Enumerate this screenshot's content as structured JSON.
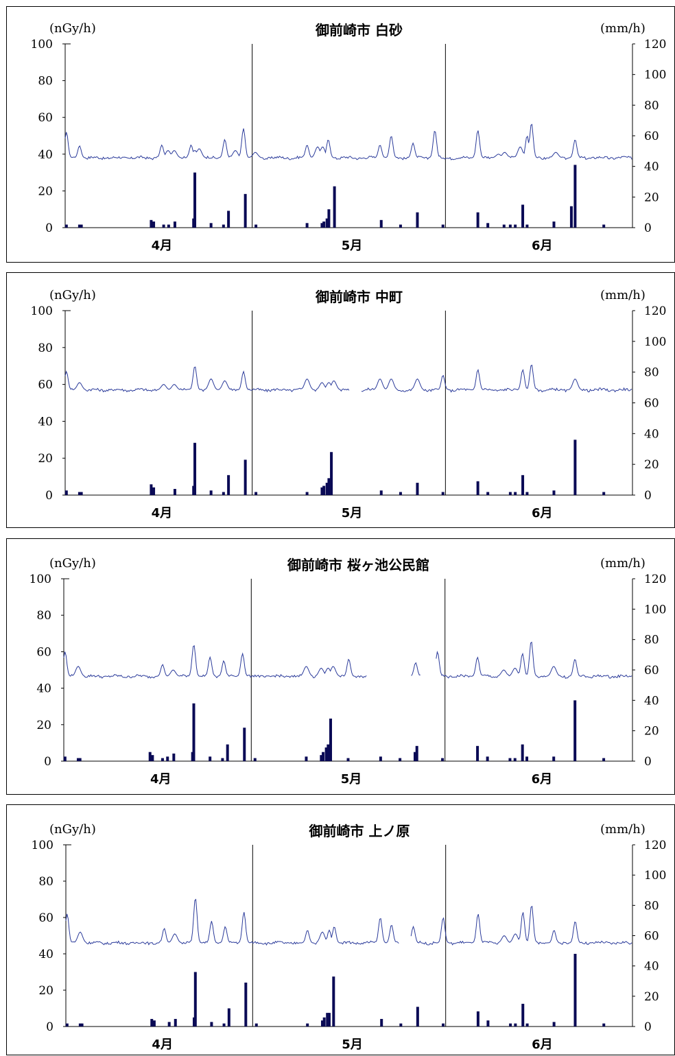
{
  "colors": {
    "dose_line": "#2a3a9a",
    "rain_bar": "#0a0a55",
    "axis": "#000000"
  },
  "chart_data": [
    {
      "type": "line",
      "title": "御前崎市 白砂",
      "left_unit": "(nGy/h)",
      "right_unit": "(mm/h)",
      "ylim_left": [
        0,
        100
      ],
      "ylim_right": [
        0,
        120
      ],
      "yticks_left": [
        "0",
        "20",
        "40",
        "60",
        "80",
        "100"
      ],
      "yticks_right": [
        "0",
        "20",
        "40",
        "60",
        "80",
        "100",
        "120"
      ],
      "xlabels": [
        "4月",
        "5月",
        "6月"
      ],
      "xlabel_days": [
        15.5,
        46,
        76.5
      ],
      "month_dividers": [
        30,
        61
      ],
      "days_total": 91,
      "series": [
        {
          "kind": "dose",
          "axis": "left",
          "base": 38,
          "gaps": [],
          "points": [
            [
              0.2,
              52
            ],
            [
              2.3,
              44.5
            ],
            [
              20.2,
              45
            ],
            [
              21.5,
              43
            ],
            [
              20.8,
              42
            ],
            [
              15.5,
              45
            ],
            [
              17.5,
              42
            ],
            [
              16.5,
              42
            ],
            [
              25.6,
              48
            ],
            [
              27.3,
              42
            ],
            [
              28.6,
              54
            ],
            [
              30.5,
              41
            ],
            [
              38.8,
              45
            ],
            [
              40.5,
              44
            ],
            [
              41.3,
              44
            ],
            [
              42.2,
              48
            ],
            [
              50.5,
              45
            ],
            [
              52.3,
              50
            ],
            [
              55.8,
              46
            ],
            [
              59.3,
              53
            ],
            [
              66.2,
              53
            ],
            [
              69.5,
              40
            ],
            [
              70.5,
              41
            ],
            [
              73,
              44
            ],
            [
              74.1,
              50
            ],
            [
              74.8,
              57
            ],
            [
              78.7,
              41
            ],
            [
              81.8,
              48
            ]
          ]
        },
        {
          "kind": "rain",
          "axis": "right",
          "bars": [
            [
              0.2,
              2
            ],
            [
              2.3,
              2
            ],
            [
              2.6,
              2
            ],
            [
              13.8,
              5
            ],
            [
              14.2,
              4
            ],
            [
              15.8,
              2
            ],
            [
              16.6,
              2
            ],
            [
              17.6,
              4
            ],
            [
              20.8,
              36
            ],
            [
              20.6,
              6
            ],
            [
              23.4,
              3
            ],
            [
              25.4,
              2
            ],
            [
              26.2,
              11
            ],
            [
              28.9,
              22
            ],
            [
              30.6,
              2
            ],
            [
              38.8,
              3
            ],
            [
              41.2,
              3
            ],
            [
              41.5,
              4
            ],
            [
              42,
              6
            ],
            [
              42.3,
              12
            ],
            [
              43.2,
              27
            ],
            [
              50.7,
              5
            ],
            [
              53.8,
              2
            ],
            [
              56.5,
              10
            ],
            [
              60.6,
              2
            ],
            [
              66.2,
              10
            ],
            [
              67.8,
              3
            ],
            [
              70.4,
              2
            ],
            [
              71.4,
              2
            ],
            [
              72.2,
              2
            ],
            [
              73.4,
              15
            ],
            [
              74.1,
              2
            ],
            [
              78.4,
              4
            ],
            [
              81.2,
              14
            ],
            [
              81.8,
              41
            ],
            [
              86.4,
              2
            ]
          ]
        }
      ]
    },
    {
      "type": "line",
      "title": "御前崎市 中町",
      "left_unit": "(nGy/h)",
      "right_unit": "(mm/h)",
      "ylim_left": [
        0,
        100
      ],
      "ylim_right": [
        0,
        120
      ],
      "yticks_left": [
        "0",
        "20",
        "40",
        "60",
        "80",
        "100"
      ],
      "yticks_right": [
        "0",
        "20",
        "40",
        "60",
        "80",
        "100",
        "120"
      ],
      "xlabels": [
        "4月",
        "5月",
        "6月"
      ],
      "xlabel_days": [
        15.5,
        46,
        76.5
      ],
      "month_dividers": [
        30,
        61
      ],
      "days_total": 91,
      "series": [
        {
          "kind": "dose",
          "axis": "left",
          "base": 57,
          "gaps": [
            [
              45.7,
              47.5
            ]
          ],
          "points": [
            [
              0.2,
              67
            ],
            [
              2.3,
              61
            ],
            [
              15.8,
              60
            ],
            [
              17.5,
              60
            ],
            [
              20.8,
              70
            ],
            [
              23.4,
              63
            ],
            [
              25.6,
              62
            ],
            [
              28.6,
              67
            ],
            [
              38.8,
              63
            ],
            [
              41.2,
              61
            ],
            [
              42.3,
              61
            ],
            [
              43.1,
              62
            ],
            [
              50.5,
              63
            ],
            [
              52.3,
              63
            ],
            [
              56.5,
              63
            ],
            [
              60.6,
              65
            ],
            [
              66.2,
              68
            ],
            [
              73.4,
              68
            ],
            [
              74.8,
              71
            ],
            [
              81.8,
              63
            ]
          ]
        },
        {
          "kind": "rain",
          "axis": "right",
          "bars": [
            [
              0.2,
              3
            ],
            [
              2.3,
              2
            ],
            [
              2.6,
              2
            ],
            [
              13.8,
              7
            ],
            [
              14.2,
              5
            ],
            [
              17.6,
              4
            ],
            [
              20.8,
              34
            ],
            [
              20.6,
              6
            ],
            [
              23.4,
              3
            ],
            [
              25.4,
              2
            ],
            [
              26.2,
              13
            ],
            [
              28.9,
              23
            ],
            [
              30.6,
              2
            ],
            [
              38.8,
              2
            ],
            [
              41.2,
              5
            ],
            [
              41.5,
              6
            ],
            [
              42,
              8
            ],
            [
              42.3,
              11
            ],
            [
              42.7,
              28
            ],
            [
              50.7,
              3
            ],
            [
              53.8,
              2
            ],
            [
              56.5,
              8
            ],
            [
              60.6,
              2
            ],
            [
              66.2,
              9
            ],
            [
              67.8,
              2
            ],
            [
              71.4,
              2
            ],
            [
              72.2,
              2
            ],
            [
              73.4,
              13
            ],
            [
              74.1,
              2
            ],
            [
              78.4,
              3
            ],
            [
              81.8,
              36
            ],
            [
              86.4,
              2
            ]
          ]
        }
      ]
    },
    {
      "type": "line",
      "title": "御前崎市 桜ヶ池公民館",
      "left_unit": "(nGy/h)",
      "right_unit": "(mm/h)",
      "ylim_left": [
        0,
        100
      ],
      "ylim_right": [
        0,
        120
      ],
      "yticks_left": [
        "0",
        "20",
        "40",
        "60",
        "80",
        "100"
      ],
      "yticks_right": [
        "0",
        "20",
        "40",
        "60",
        "80",
        "100",
        "120"
      ],
      "xlabels": [
        "4月",
        "5月",
        "6月"
      ],
      "xlabel_days": [
        15.5,
        46,
        76.5
      ],
      "month_dividers": [
        30,
        61
      ],
      "days_total": 91,
      "series": [
        {
          "kind": "dose",
          "axis": "left",
          "base": 46.5,
          "gaps": [
            [
              48.5,
              55.5
            ],
            [
              57.2,
              59.5
            ]
          ],
          "points": [
            [
              0.2,
              60
            ],
            [
              2.3,
              52
            ],
            [
              15.8,
              53
            ],
            [
              17.5,
              50
            ],
            [
              20.8,
              64
            ],
            [
              23.4,
              57
            ],
            [
              25.6,
              55
            ],
            [
              28.6,
              59
            ],
            [
              38.8,
              52
            ],
            [
              41.2,
              51
            ],
            [
              42.3,
              51
            ],
            [
              43.1,
              52
            ],
            [
              45.6,
              56
            ],
            [
              56.3,
              54
            ],
            [
              59.8,
              60
            ],
            [
              66.2,
              57
            ],
            [
              70.4,
              50
            ],
            [
              72.2,
              51
            ],
            [
              73.4,
              59
            ],
            [
              74.8,
              66
            ],
            [
              78.4,
              52
            ],
            [
              81.8,
              56
            ]
          ]
        },
        {
          "kind": "rain",
          "axis": "right",
          "bars": [
            [
              0.2,
              3
            ],
            [
              2.3,
              2
            ],
            [
              2.6,
              2
            ],
            [
              13.8,
              6
            ],
            [
              14.2,
              4
            ],
            [
              15.8,
              2
            ],
            [
              16.6,
              3
            ],
            [
              17.6,
              5
            ],
            [
              20.8,
              38
            ],
            [
              20.6,
              6
            ],
            [
              23.4,
              3
            ],
            [
              25.4,
              2
            ],
            [
              26.2,
              11
            ],
            [
              28.9,
              22
            ],
            [
              30.6,
              2
            ],
            [
              38.8,
              3
            ],
            [
              41.2,
              4
            ],
            [
              41.5,
              6
            ],
            [
              42,
              9
            ],
            [
              42.3,
              11
            ],
            [
              42.7,
              28
            ],
            [
              45.5,
              2
            ],
            [
              50.7,
              3
            ],
            [
              53.8,
              2
            ],
            [
              56.2,
              6
            ],
            [
              56.5,
              10
            ],
            [
              60.6,
              2
            ],
            [
              66.2,
              10
            ],
            [
              67.8,
              3
            ],
            [
              71.4,
              2
            ],
            [
              72.2,
              2
            ],
            [
              73.4,
              11
            ],
            [
              74.1,
              3
            ],
            [
              78.4,
              3
            ],
            [
              81.8,
              40
            ],
            [
              86.4,
              2
            ]
          ]
        }
      ]
    },
    {
      "type": "line",
      "title": "御前崎市 上ノ原",
      "left_unit": "(nGy/h)",
      "right_unit": "(mm/h)",
      "ylim_left": [
        0,
        100
      ],
      "ylim_right": [
        0,
        120
      ],
      "yticks_left": [
        "0",
        "20",
        "40",
        "60",
        "80",
        "100"
      ],
      "yticks_right": [
        "0",
        "20",
        "40",
        "60",
        "80",
        "100",
        "120"
      ],
      "xlabels": [
        "4月",
        "5月",
        "6月"
      ],
      "xlabel_days": [
        15.5,
        46,
        76.5
      ],
      "month_dividers": [
        30,
        61
      ],
      "days_total": 91,
      "series": [
        {
          "kind": "dose",
          "axis": "left",
          "base": 46,
          "gaps": [
            [
              53.5,
              55.4
            ]
          ],
          "points": [
            [
              0.2,
              62
            ],
            [
              2.3,
              52
            ],
            [
              15.8,
              54
            ],
            [
              17.5,
              51
            ],
            [
              20.8,
              71
            ],
            [
              23.4,
              58
            ],
            [
              25.6,
              55
            ],
            [
              28.6,
              63
            ],
            [
              38.8,
              53
            ],
            [
              41.2,
              52
            ],
            [
              42.3,
              53
            ],
            [
              43.1,
              55
            ],
            [
              50.5,
              60
            ],
            [
              52.3,
              56
            ],
            [
              55.8,
              55
            ],
            [
              60.6,
              60
            ],
            [
              66.2,
              62
            ],
            [
              70.4,
              50
            ],
            [
              72.2,
              51
            ],
            [
              73.4,
              63
            ],
            [
              74.8,
              67
            ],
            [
              78.4,
              53
            ],
            [
              81.8,
              58
            ]
          ]
        },
        {
          "kind": "rain",
          "axis": "right",
          "bars": [
            [
              0.2,
              2
            ],
            [
              2.3,
              2
            ],
            [
              2.6,
              2
            ],
            [
              13.8,
              5
            ],
            [
              14.2,
              4
            ],
            [
              16.6,
              3
            ],
            [
              17.6,
              5
            ],
            [
              20.8,
              36
            ],
            [
              20.6,
              6
            ],
            [
              23.4,
              3
            ],
            [
              25.4,
              2
            ],
            [
              26.2,
              12
            ],
            [
              28.9,
              29
            ],
            [
              30.6,
              2
            ],
            [
              38.8,
              2
            ],
            [
              41.2,
              4
            ],
            [
              41.5,
              6
            ],
            [
              42,
              9
            ],
            [
              42.3,
              9
            ],
            [
              43,
              33
            ],
            [
              50.7,
              5
            ],
            [
              53.8,
              2
            ],
            [
              56.5,
              13
            ],
            [
              60.6,
              2
            ],
            [
              66.2,
              10
            ],
            [
              67.8,
              4
            ],
            [
              71.4,
              2
            ],
            [
              72.2,
              2
            ],
            [
              73.4,
              15
            ],
            [
              74.1,
              2
            ],
            [
              78.4,
              3
            ],
            [
              81.8,
              48
            ],
            [
              86.4,
              2
            ]
          ]
        }
      ]
    }
  ]
}
